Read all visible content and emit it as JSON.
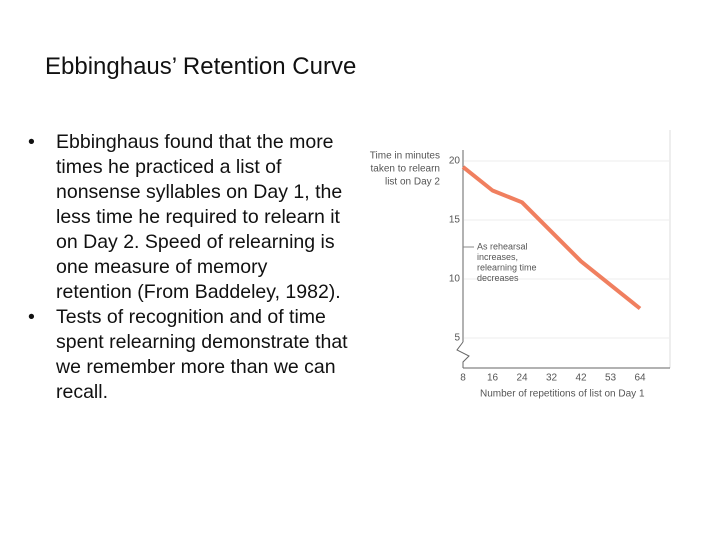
{
  "title": "Ebbinghaus’ Retention Curve",
  "bullets": [
    "Ebbinghaus found that the more times he practiced a list of nonsense syllables on Day 1, the less time he required to relearn it on Day 2. Speed of relearning is one measure of memory retention (From Baddeley, 1982).",
    "Tests of recognition and of time spent relearning demonstrate that we remember more than we can recall."
  ],
  "chart_data": {
    "type": "line",
    "y_label": [
      "Time in minutes",
      "taken to relearn",
      "list on Day 2"
    ],
    "x_label": "Number of repetitions of list on Day 1",
    "annotation": [
      "As rehearsal",
      "increases,",
      "relearning time",
      "decreases"
    ],
    "categories": [
      "8",
      "16",
      "24",
      "32",
      "42",
      "53",
      "64"
    ],
    "values": [
      19.5,
      17.5,
      16.5,
      14,
      11.5,
      9.5,
      7.5
    ],
    "color": "#f07f5f",
    "ylim": [
      2.5,
      22.5
    ],
    "yticks": [
      5,
      10,
      15,
      20
    ],
    "grid": true
  }
}
